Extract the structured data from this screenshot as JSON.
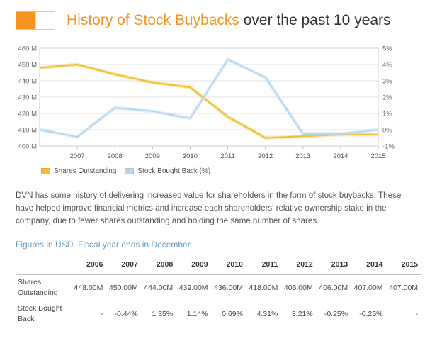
{
  "header": {
    "title_accent": "History of Stock Buybacks",
    "title_rest": " over the past 10 years",
    "logo_color": "#f7931e"
  },
  "legend": {
    "shares_label": "Shares Outstanding",
    "buyback_label": "Stock Bought Back (%)"
  },
  "description": "DVN has some history of delivering increased value for shareholders in the form of stock buybacks. These have helped improve financial metrics and increase each shareholders' relative ownership stake in the company, due to fewer shares outstanding and holding the same number of shares.",
  "figures_caption": "Figures in USD. Fiscal year ends in December",
  "table": {
    "years": [
      "2006",
      "2007",
      "2008",
      "2009",
      "2010",
      "2011",
      "2012",
      "2013",
      "2014",
      "2015"
    ],
    "rows": [
      {
        "label_line1": "Shares",
        "label_line2": "Outstanding",
        "values": [
          "448.00M",
          "450.00M",
          "444.00M",
          "439.00M",
          "436.00M",
          "418.00M",
          "405.00M",
          "406.00M",
          "407.00M",
          "407.00M"
        ]
      },
      {
        "label_line1": "Stock Bought",
        "label_line2": "Back",
        "values": [
          "-",
          "-0.44%",
          "1.35%",
          "1.14%",
          "0.69%",
          "4.31%",
          "3.21%",
          "-0.25%",
          "-0.25%",
          "-"
        ]
      }
    ]
  },
  "chart_data": {
    "type": "line",
    "title": "History of Stock Buybacks over the past 10 years",
    "x": [
      2006,
      2007,
      2008,
      2009,
      2010,
      2011,
      2012,
      2013,
      2014,
      2015
    ],
    "x_tick_labels": [
      "2007",
      "2008",
      "2009",
      "2010",
      "2011",
      "2012",
      "2013",
      "2014",
      "2015"
    ],
    "y_left": {
      "ylim": [
        400,
        460
      ],
      "ticks": [
        400,
        410,
        420,
        430,
        440,
        450,
        460
      ],
      "tick_labels": [
        "400 M",
        "410 M",
        "420 M",
        "430 M",
        "440 M",
        "450 M",
        "460 M"
      ]
    },
    "y_right": {
      "ylim": [
        -1,
        5
      ],
      "ticks": [
        -1,
        0,
        1,
        2,
        3,
        4,
        5
      ],
      "tick_labels": [
        "-1%",
        "0%",
        "1%",
        "2%",
        "3%",
        "4%",
        "5%"
      ]
    },
    "series": [
      {
        "name": "Shares Outstanding",
        "axis": "left",
        "color": "#f0c030",
        "values": [
          448,
          450,
          444,
          439,
          436,
          418,
          405,
          406,
          407,
          407
        ]
      },
      {
        "name": "Stock Bought Back (%)",
        "axis": "right",
        "color": "#b8d6ef",
        "values": [
          0,
          -0.44,
          1.35,
          1.14,
          0.69,
          4.31,
          3.21,
          -0.25,
          -0.25,
          0
        ]
      }
    ],
    "grid": true
  }
}
